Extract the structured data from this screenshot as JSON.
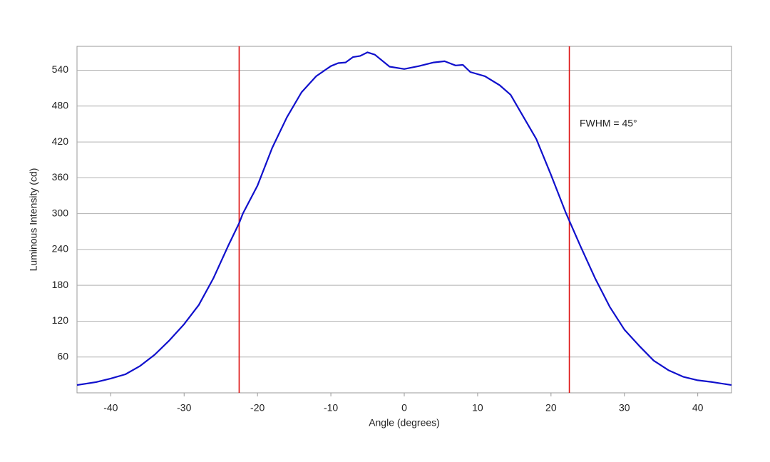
{
  "chart_data": {
    "type": "line",
    "x_label": "Angle (degrees)",
    "y_label": "Luminous Intensity (cd)",
    "x": [
      -44.6,
      -42,
      -40,
      -38,
      -36,
      -34,
      -32,
      -30,
      -28,
      -26,
      -24,
      -22.5,
      -22,
      -20,
      -18,
      -16,
      -14,
      -12,
      -10,
      -9,
      -8,
      -7,
      -6,
      -5,
      -4,
      -2,
      0,
      2,
      4,
      5.5,
      7,
      8,
      9,
      11,
      13,
      14.5,
      16,
      18,
      20,
      22,
      24,
      26,
      28,
      30,
      32,
      34,
      36,
      38,
      40,
      42,
      44.6
    ],
    "series": [
      {
        "name": "Luminous Intensity",
        "color": "#1010cc",
        "values": [
          13,
          18,
          24,
          31,
          45,
          64,
          88,
          115,
          147,
          192,
          246,
          284,
          300,
          347,
          410,
          461,
          503,
          530,
          547,
          552,
          553,
          562,
          564,
          570,
          566,
          546,
          542,
          547,
          553,
          555,
          548,
          549,
          537,
          530,
          515,
          499,
          467,
          425,
          365,
          302,
          246,
          192,
          144,
          106,
          79,
          54,
          38,
          27,
          21,
          18,
          13
        ]
      }
    ],
    "xlim": [
      -44.6,
      44.6
    ],
    "ylim": [
      0,
      580
    ],
    "xticks": [
      -40,
      -30,
      -20,
      -10,
      0,
      10,
      20,
      30,
      40
    ],
    "yticks": [
      60,
      120,
      180,
      240,
      300,
      360,
      420,
      480,
      540
    ],
    "grid": true,
    "vlines": {
      "color": "#dd1111",
      "x": [
        -22.5,
        22.5
      ]
    },
    "annotation": {
      "text": "FWHM = 45°",
      "x": 23.9,
      "y": 450
    }
  }
}
